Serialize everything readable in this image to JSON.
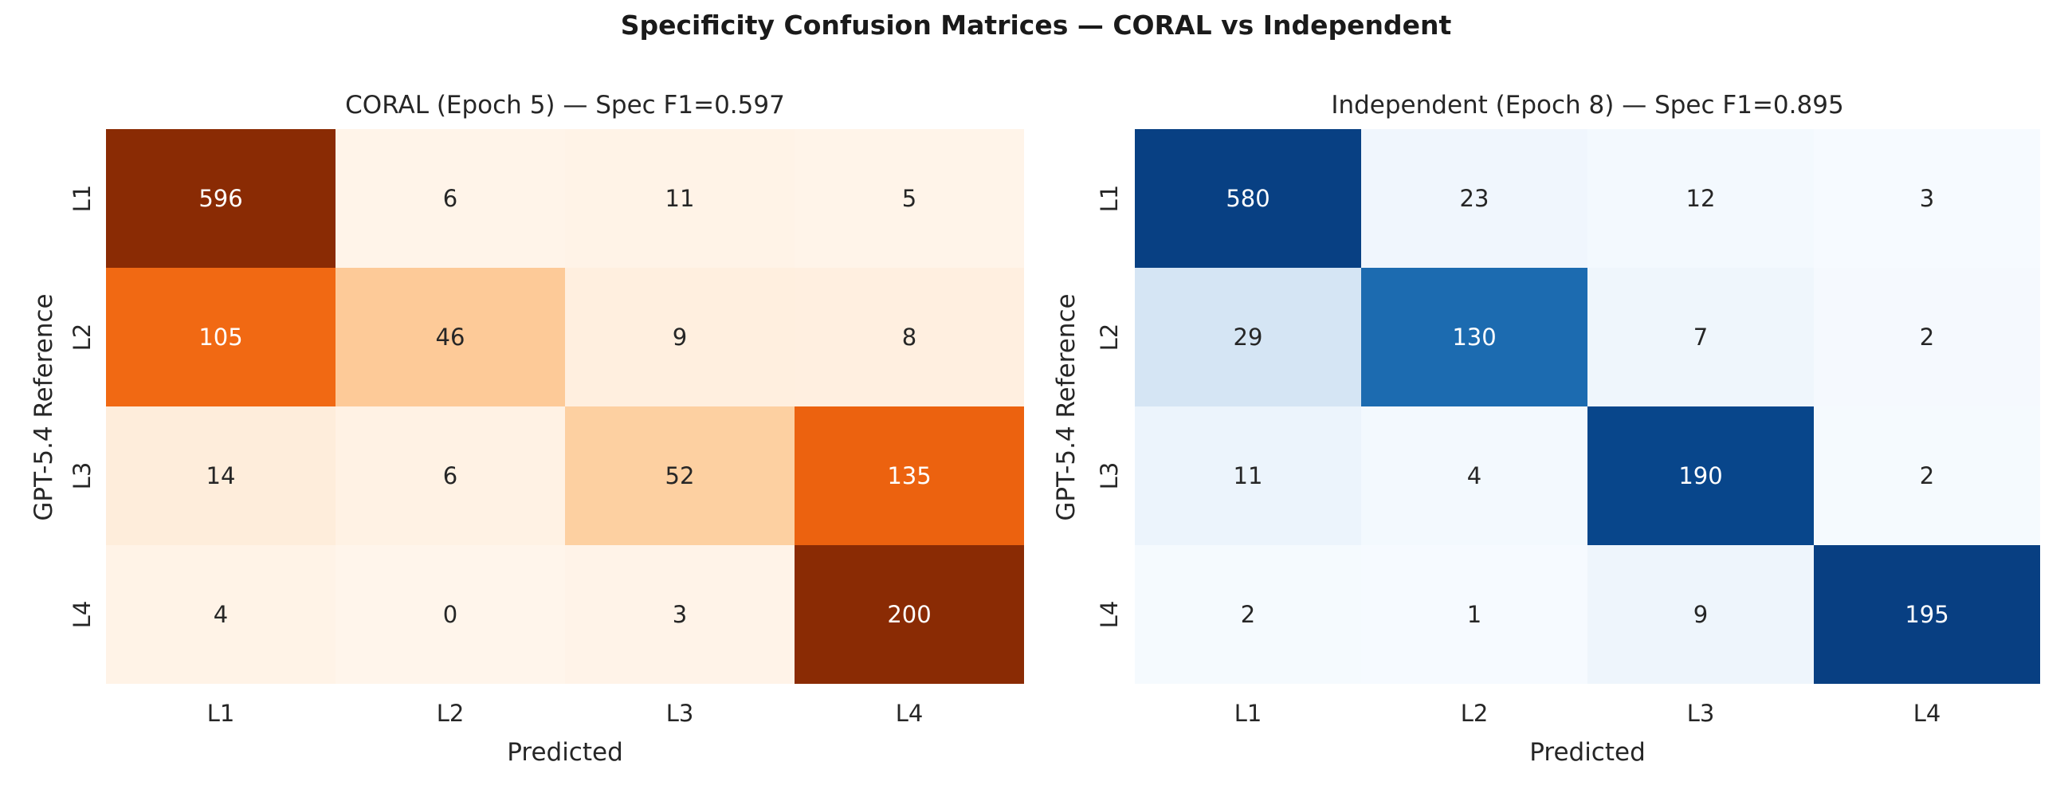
{
  "figure": {
    "suptitle": "Specificity Confusion Matrices — CORAL vs Independent",
    "background": "#ffffff",
    "text_color": "#262626"
  },
  "chart_data": {
    "type": "heatmap",
    "layout": "1x2",
    "shared": {
      "xlabel": "Predicted",
      "ylabel": "GPT-5.4 Reference",
      "x_tick_labels": [
        "L1",
        "L2",
        "L3",
        "L4"
      ],
      "y_tick_labels": [
        "L1",
        "L2",
        "L3",
        "L4"
      ],
      "normalization": "row_sum",
      "annotation_light_color": "#ffffff",
      "annotation_dark_color": "#262626",
      "grid": false,
      "colorbar": false
    },
    "panels": [
      {
        "title": "CORAL (Epoch 5) — Spec F1=0.597",
        "colormap": "Oranges",
        "values": [
          [
            596,
            6,
            11,
            5
          ],
          [
            105,
            46,
            9,
            8
          ],
          [
            14,
            6,
            52,
            135
          ],
          [
            4,
            0,
            3,
            200
          ]
        ]
      },
      {
        "title": "Independent (Epoch 8) — Spec F1=0.895",
        "colormap": "Blues",
        "values": [
          [
            580,
            23,
            12,
            3
          ],
          [
            29,
            130,
            7,
            2
          ],
          [
            11,
            4,
            190,
            2
          ],
          [
            2,
            1,
            9,
            195
          ]
        ]
      }
    ],
    "colormaps": {
      "Oranges": [
        "#fff5eb",
        "#fee6ce",
        "#fdd0a2",
        "#fdae6b",
        "#fd8d3c",
        "#f16913",
        "#d94801",
        "#a63603",
        "#7f2704"
      ],
      "Blues": [
        "#f7fbff",
        "#deebf7",
        "#c6dbef",
        "#9ecae1",
        "#6baed6",
        "#4292c6",
        "#2171b5",
        "#08519c",
        "#08306b"
      ]
    }
  }
}
